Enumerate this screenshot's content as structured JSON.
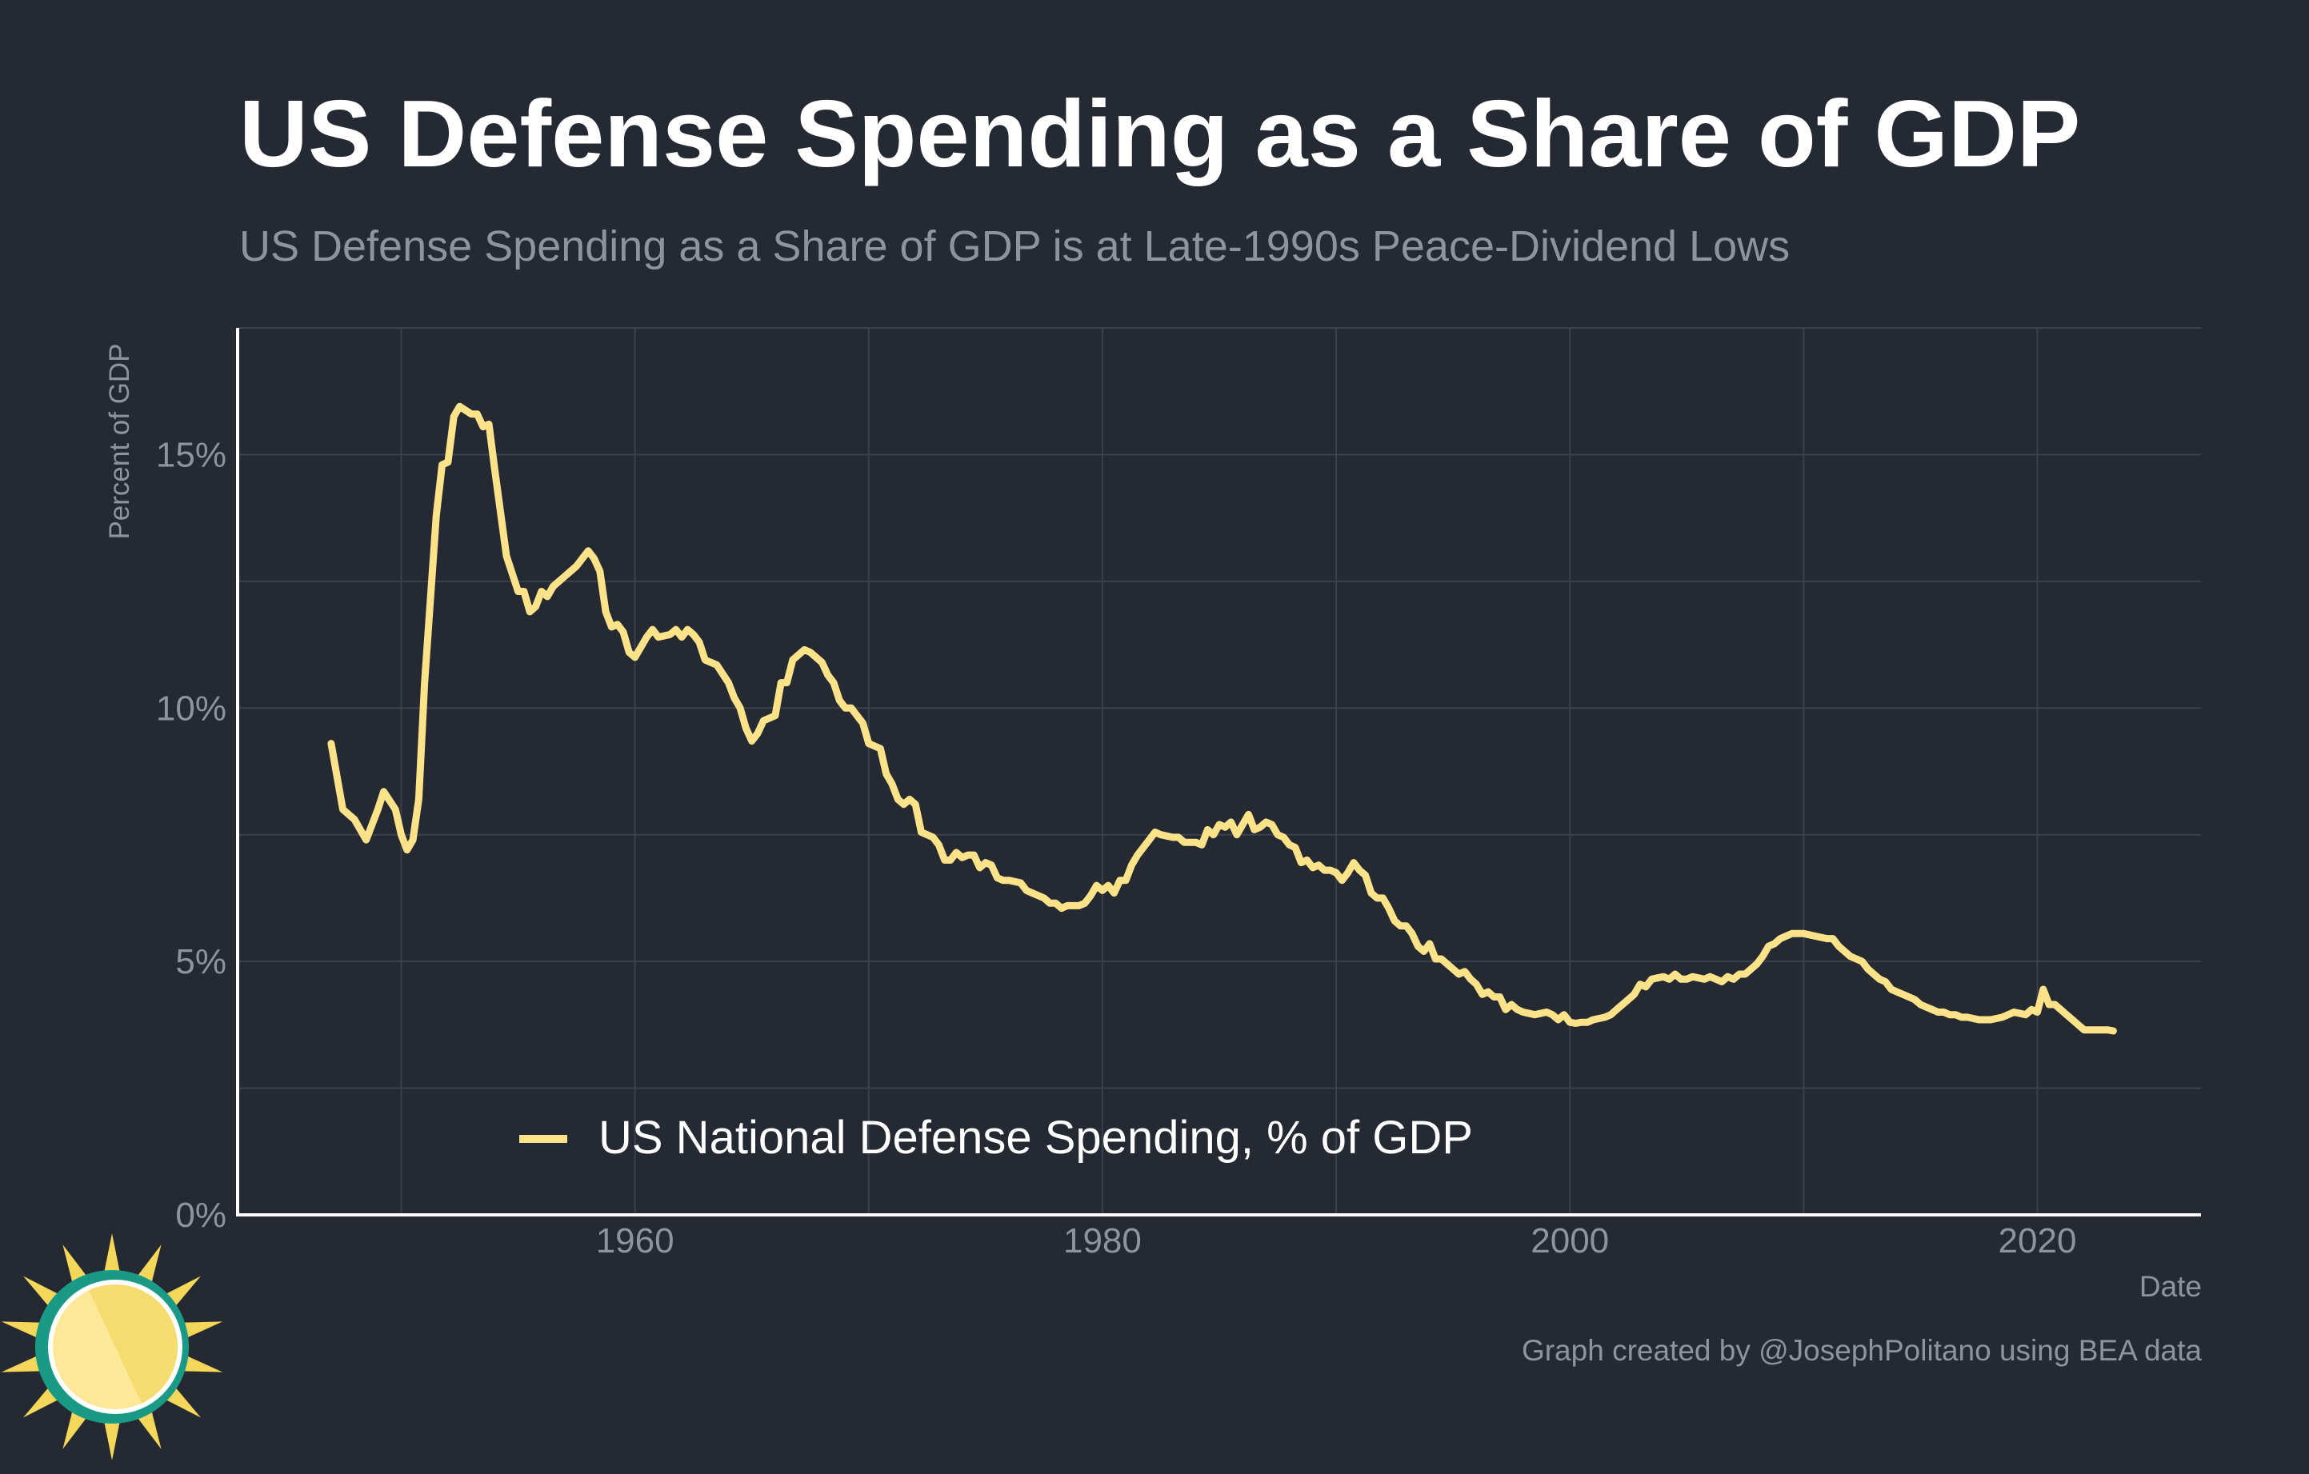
{
  "title": "US Defense Spending as a Share of GDP",
  "subtitle": "US Defense Spending as a Share of GDP is at Late-1990s Peace-Dividend Lows",
  "caption": "Graph created by @JosephPolitano using BEA data",
  "colors": {
    "background": "#252932",
    "line": "#fce38a",
    "grid": "#3b404b",
    "axis": "#ffffff",
    "text_muted": "#8f949c"
  },
  "logo": {
    "icon": "sun-logo-icon"
  },
  "chart_data": {
    "type": "line",
    "title": "US Defense Spending as a Share of GDP",
    "subtitle": "US Defense Spending as a Share of GDP is at Late-1990s Peace-Dividend Lows",
    "xlabel": "Date",
    "ylabel": "Percent of GDP",
    "xlim": [
      1943,
      2027
    ],
    "ylim": [
      0,
      17.5
    ],
    "x_ticks": [
      1960,
      1980,
      2000,
      2020
    ],
    "x_tick_labels": [
      "1960",
      "1980",
      "2000",
      "2020"
    ],
    "y_ticks": [
      0,
      5,
      10,
      15
    ],
    "y_tick_labels": [
      "0%",
      "5%",
      "10%",
      "15%"
    ],
    "grid": true,
    "legend_position": "bottom-left",
    "series": [
      {
        "name": "US National Defense Spending, % of GDP",
        "color": "#fce38a",
        "points": [
          [
            1947.0,
            9.3
          ],
          [
            1947.5,
            8.0
          ],
          [
            1948.0,
            7.8
          ],
          [
            1948.5,
            7.4
          ],
          [
            1949.0,
            8.0
          ],
          [
            1949.25,
            8.35
          ],
          [
            1949.75,
            8.0
          ],
          [
            1950.0,
            7.5
          ],
          [
            1950.25,
            7.2
          ],
          [
            1950.5,
            7.4
          ],
          [
            1950.75,
            8.2
          ],
          [
            1951.0,
            10.5
          ],
          [
            1951.5,
            13.8
          ],
          [
            1951.75,
            14.8
          ],
          [
            1952.0,
            14.85
          ],
          [
            1952.25,
            15.75
          ],
          [
            1952.5,
            15.95
          ],
          [
            1953.0,
            15.8
          ],
          [
            1953.25,
            15.8
          ],
          [
            1953.5,
            15.55
          ],
          [
            1953.75,
            15.6
          ],
          [
            1954.0,
            14.7
          ],
          [
            1954.5,
            13.0
          ],
          [
            1955.0,
            12.3
          ],
          [
            1955.25,
            12.3
          ],
          [
            1955.5,
            11.9
          ],
          [
            1955.75,
            12.0
          ],
          [
            1956.0,
            12.3
          ],
          [
            1956.25,
            12.2
          ],
          [
            1956.5,
            12.4
          ],
          [
            1957.0,
            12.6
          ],
          [
            1957.5,
            12.8
          ],
          [
            1958.0,
            13.1
          ],
          [
            1958.25,
            12.95
          ],
          [
            1958.5,
            12.7
          ],
          [
            1958.75,
            11.9
          ],
          [
            1959.0,
            11.6
          ],
          [
            1959.25,
            11.65
          ],
          [
            1959.5,
            11.5
          ],
          [
            1959.75,
            11.1
          ],
          [
            1960.0,
            11.0
          ],
          [
            1960.5,
            11.4
          ],
          [
            1960.75,
            11.55
          ],
          [
            1961.0,
            11.4
          ],
          [
            1961.5,
            11.45
          ],
          [
            1961.75,
            11.55
          ],
          [
            1962.0,
            11.4
          ],
          [
            1962.25,
            11.55
          ],
          [
            1962.5,
            11.45
          ],
          [
            1962.75,
            11.3
          ],
          [
            1963.0,
            10.95
          ],
          [
            1963.5,
            10.85
          ],
          [
            1964.0,
            10.5
          ],
          [
            1964.25,
            10.2
          ],
          [
            1964.5,
            10.0
          ],
          [
            1964.75,
            9.6
          ],
          [
            1965.0,
            9.35
          ],
          [
            1965.25,
            9.5
          ],
          [
            1965.5,
            9.75
          ],
          [
            1966.0,
            9.85
          ],
          [
            1966.25,
            10.5
          ],
          [
            1966.5,
            10.5
          ],
          [
            1966.75,
            10.95
          ],
          [
            1967.0,
            11.05
          ],
          [
            1967.25,
            11.15
          ],
          [
            1967.5,
            11.1
          ],
          [
            1968.0,
            10.9
          ],
          [
            1968.25,
            10.65
          ],
          [
            1968.5,
            10.5
          ],
          [
            1968.75,
            10.15
          ],
          [
            1969.0,
            10.0
          ],
          [
            1969.25,
            10.0
          ],
          [
            1969.75,
            9.7
          ],
          [
            1970.0,
            9.3
          ],
          [
            1970.5,
            9.2
          ],
          [
            1970.75,
            8.7
          ],
          [
            1971.0,
            8.5
          ],
          [
            1971.25,
            8.2
          ],
          [
            1971.5,
            8.1
          ],
          [
            1971.75,
            8.2
          ],
          [
            1972.0,
            8.1
          ],
          [
            1972.25,
            7.55
          ],
          [
            1972.75,
            7.45
          ],
          [
            1973.0,
            7.3
          ],
          [
            1973.25,
            7.0
          ],
          [
            1973.5,
            7.0
          ],
          [
            1973.75,
            7.15
          ],
          [
            1974.0,
            7.05
          ],
          [
            1974.25,
            7.1
          ],
          [
            1974.5,
            7.1
          ],
          [
            1974.75,
            6.85
          ],
          [
            1975.0,
            6.95
          ],
          [
            1975.25,
            6.9
          ],
          [
            1975.5,
            6.65
          ],
          [
            1975.75,
            6.6
          ],
          [
            1976.0,
            6.6
          ],
          [
            1976.5,
            6.55
          ],
          [
            1976.75,
            6.4
          ],
          [
            1977.0,
            6.35
          ],
          [
            1977.5,
            6.25
          ],
          [
            1977.75,
            6.15
          ],
          [
            1978.0,
            6.15
          ],
          [
            1978.25,
            6.05
          ],
          [
            1978.5,
            6.1
          ],
          [
            1979.0,
            6.1
          ],
          [
            1979.25,
            6.15
          ],
          [
            1979.5,
            6.3
          ],
          [
            1979.75,
            6.5
          ],
          [
            1980.0,
            6.4
          ],
          [
            1980.25,
            6.5
          ],
          [
            1980.5,
            6.35
          ],
          [
            1980.75,
            6.6
          ],
          [
            1981.0,
            6.6
          ],
          [
            1981.25,
            6.9
          ],
          [
            1981.5,
            7.1
          ],
          [
            1981.75,
            7.25
          ],
          [
            1982.0,
            7.4
          ],
          [
            1982.25,
            7.55
          ],
          [
            1982.5,
            7.5
          ],
          [
            1983.0,
            7.45
          ],
          [
            1983.25,
            7.45
          ],
          [
            1983.5,
            7.35
          ],
          [
            1984.0,
            7.35
          ],
          [
            1984.25,
            7.3
          ],
          [
            1984.5,
            7.6
          ],
          [
            1984.75,
            7.5
          ],
          [
            1985.0,
            7.7
          ],
          [
            1985.25,
            7.65
          ],
          [
            1985.5,
            7.75
          ],
          [
            1985.75,
            7.5
          ],
          [
            1986.0,
            7.7
          ],
          [
            1986.25,
            7.9
          ],
          [
            1986.5,
            7.6
          ],
          [
            1986.75,
            7.65
          ],
          [
            1987.0,
            7.75
          ],
          [
            1987.25,
            7.7
          ],
          [
            1987.5,
            7.5
          ],
          [
            1987.75,
            7.45
          ],
          [
            1988.0,
            7.3
          ],
          [
            1988.25,
            7.25
          ],
          [
            1988.5,
            6.95
          ],
          [
            1988.75,
            7.0
          ],
          [
            1989.0,
            6.85
          ],
          [
            1989.25,
            6.9
          ],
          [
            1989.5,
            6.8
          ],
          [
            1989.75,
            6.8
          ],
          [
            1990.0,
            6.75
          ],
          [
            1990.25,
            6.6
          ],
          [
            1990.5,
            6.75
          ],
          [
            1990.75,
            6.95
          ],
          [
            1991.0,
            6.8
          ],
          [
            1991.25,
            6.7
          ],
          [
            1991.5,
            6.35
          ],
          [
            1991.75,
            6.25
          ],
          [
            1992.0,
            6.25
          ],
          [
            1992.25,
            6.05
          ],
          [
            1992.5,
            5.8
          ],
          [
            1992.75,
            5.7
          ],
          [
            1993.0,
            5.7
          ],
          [
            1993.25,
            5.55
          ],
          [
            1993.5,
            5.3
          ],
          [
            1993.75,
            5.2
          ],
          [
            1994.0,
            5.35
          ],
          [
            1994.25,
            5.05
          ],
          [
            1994.5,
            5.05
          ],
          [
            1994.75,
            4.95
          ],
          [
            1995.0,
            4.85
          ],
          [
            1995.25,
            4.75
          ],
          [
            1995.5,
            4.8
          ],
          [
            1995.75,
            4.65
          ],
          [
            1996.0,
            4.55
          ],
          [
            1996.25,
            4.35
          ],
          [
            1996.5,
            4.4
          ],
          [
            1996.75,
            4.3
          ],
          [
            1997.0,
            4.3
          ],
          [
            1997.25,
            4.05
          ],
          [
            1997.5,
            4.15
          ],
          [
            1997.75,
            4.05
          ],
          [
            1998.0,
            4.0
          ],
          [
            1998.5,
            3.95
          ],
          [
            1999.0,
            4.0
          ],
          [
            1999.25,
            3.95
          ],
          [
            1999.5,
            3.85
          ],
          [
            1999.75,
            3.95
          ],
          [
            2000.0,
            3.8
          ],
          [
            2000.25,
            3.78
          ],
          [
            2000.5,
            3.8
          ],
          [
            2000.75,
            3.8
          ],
          [
            2001.0,
            3.85
          ],
          [
            2001.5,
            3.9
          ],
          [
            2001.75,
            3.95
          ],
          [
            2002.0,
            4.05
          ],
          [
            2002.5,
            4.25
          ],
          [
            2002.75,
            4.35
          ],
          [
            2003.0,
            4.55
          ],
          [
            2003.25,
            4.5
          ],
          [
            2003.5,
            4.65
          ],
          [
            2004.0,
            4.7
          ],
          [
            2004.25,
            4.65
          ],
          [
            2004.5,
            4.75
          ],
          [
            2004.75,
            4.65
          ],
          [
            2005.0,
            4.65
          ],
          [
            2005.25,
            4.7
          ],
          [
            2005.75,
            4.65
          ],
          [
            2006.0,
            4.7
          ],
          [
            2006.5,
            4.6
          ],
          [
            2006.75,
            4.7
          ],
          [
            2007.0,
            4.65
          ],
          [
            2007.25,
            4.75
          ],
          [
            2007.5,
            4.75
          ],
          [
            2008.0,
            4.95
          ],
          [
            2008.25,
            5.1
          ],
          [
            2008.5,
            5.3
          ],
          [
            2008.75,
            5.35
          ],
          [
            2009.0,
            5.45
          ],
          [
            2009.5,
            5.55
          ],
          [
            2010.0,
            5.55
          ],
          [
            2010.5,
            5.5
          ],
          [
            2011.0,
            5.45
          ],
          [
            2011.25,
            5.45
          ],
          [
            2011.5,
            5.3
          ],
          [
            2011.75,
            5.2
          ],
          [
            2012.0,
            5.1
          ],
          [
            2012.5,
            5.0
          ],
          [
            2012.75,
            4.85
          ],
          [
            2013.0,
            4.75
          ],
          [
            2013.25,
            4.65
          ],
          [
            2013.5,
            4.6
          ],
          [
            2013.75,
            4.45
          ],
          [
            2014.0,
            4.4
          ],
          [
            2014.5,
            4.3
          ],
          [
            2014.75,
            4.25
          ],
          [
            2015.0,
            4.15
          ],
          [
            2015.25,
            4.1
          ],
          [
            2015.5,
            4.05
          ],
          [
            2015.75,
            4.0
          ],
          [
            2016.0,
            4.0
          ],
          [
            2016.25,
            3.95
          ],
          [
            2016.5,
            3.95
          ],
          [
            2016.75,
            3.9
          ],
          [
            2017.0,
            3.9
          ],
          [
            2017.5,
            3.85
          ],
          [
            2018.0,
            3.85
          ],
          [
            2018.5,
            3.9
          ],
          [
            2019.0,
            4.0
          ],
          [
            2019.5,
            3.95
          ],
          [
            2019.75,
            4.05
          ],
          [
            2020.0,
            4.0
          ],
          [
            2020.25,
            4.45
          ],
          [
            2020.5,
            4.15
          ],
          [
            2020.75,
            4.15
          ],
          [
            2021.0,
            4.05
          ],
          [
            2021.25,
            3.95
          ],
          [
            2021.5,
            3.85
          ],
          [
            2021.75,
            3.75
          ],
          [
            2022.0,
            3.65
          ],
          [
            2022.5,
            3.65
          ],
          [
            2023.0,
            3.65
          ],
          [
            2023.25,
            3.63
          ]
        ]
      }
    ]
  }
}
